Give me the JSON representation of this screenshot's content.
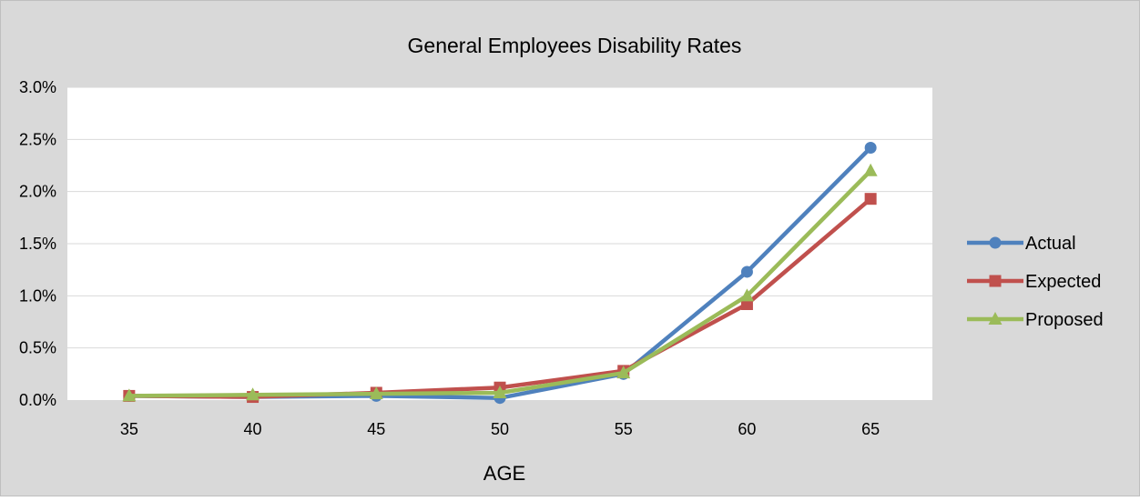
{
  "chart_data": {
    "type": "line",
    "title": "General Employees Disability Rates",
    "xlabel": "AGE",
    "ylabel": "",
    "categories": [
      "35",
      "40",
      "45",
      "50",
      "55",
      "60",
      "65"
    ],
    "y_ticks": [
      "0.0%",
      "0.5%",
      "1.0%",
      "1.5%",
      "2.0%",
      "2.5%",
      "3.0%"
    ],
    "ylim": [
      0,
      3.0
    ],
    "y_unit": "%",
    "grid": true,
    "legend_position": "right",
    "series": [
      {
        "name": "Actual",
        "values": [
          0.04,
          0.03,
          0.04,
          0.02,
          0.25,
          1.23,
          2.42
        ],
        "color": "#4F81BD",
        "marker": "circle"
      },
      {
        "name": "Expected",
        "values": [
          0.04,
          0.03,
          0.07,
          0.12,
          0.28,
          0.92,
          1.93
        ],
        "color": "#C0504D",
        "marker": "square"
      },
      {
        "name": "Proposed",
        "values": [
          0.04,
          0.05,
          0.06,
          0.07,
          0.26,
          1.0,
          2.2
        ],
        "color": "#9BBB59",
        "marker": "triangle"
      }
    ]
  }
}
